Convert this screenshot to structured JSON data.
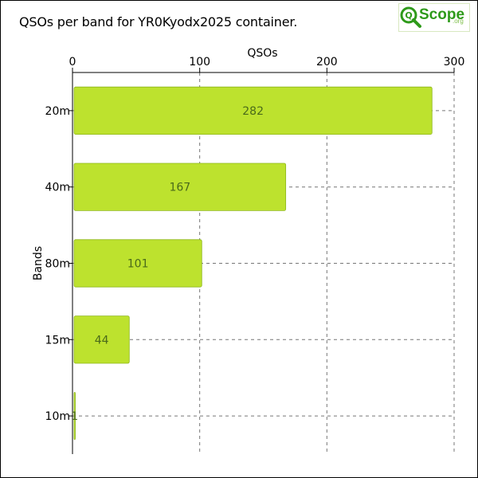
{
  "header": {
    "title": "QSOs per band for YR0Kyodx2025 container.",
    "logo_text": "Scope",
    "logo_suffix": ".org"
  },
  "chart_data": {
    "type": "bar",
    "orientation": "horizontal",
    "categories": [
      "20m",
      "40m",
      "80m",
      "15m",
      "10m"
    ],
    "values": [
      282,
      167,
      101,
      44,
      1
    ],
    "xlabel": "QSOs",
    "ylabel": "Bands",
    "xlim": [
      0,
      300
    ],
    "xticks": [
      0,
      100,
      200,
      300
    ],
    "x_axis_position": "top",
    "grid": true,
    "bar_color": "#bde22e",
    "bar_edge_color": "#8db61a",
    "label_color": "#4a6a1a"
  }
}
